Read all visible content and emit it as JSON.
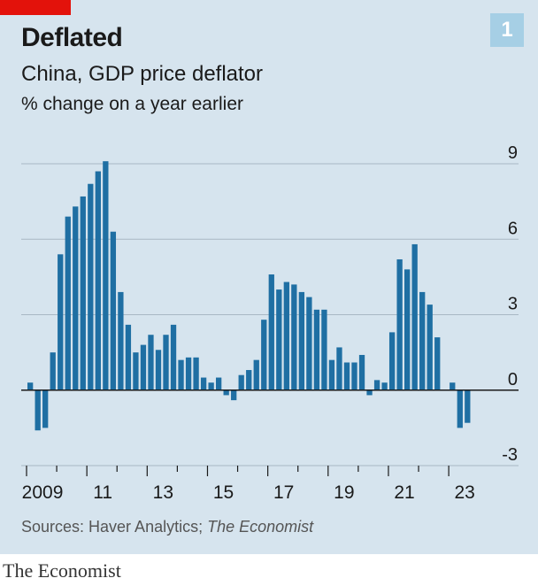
{
  "colors": {
    "accent": "#e3120b",
    "bar": "#1f6fa3",
    "badge_bg": "#a6cfe5",
    "panel_bg": "#d6e4ee",
    "grid": "#a8b8c4"
  },
  "badge": "1",
  "title": "Deflated",
  "subtitle": "China, GDP price deflator",
  "unit_label": "% change on a year earlier",
  "source_prefix": "Sources: Haver Analytics; ",
  "source_italic": "The Economist",
  "brand": "The Economist",
  "chart_data": {
    "type": "bar",
    "title": "China, GDP price deflator",
    "ylabel": "% change on a year earlier",
    "ylim": [
      -3,
      9
    ],
    "yticks": [
      "9",
      "6",
      "3",
      "0",
      "-3"
    ],
    "xticks": [
      "2009",
      "11",
      "13",
      "15",
      "17",
      "19",
      "21",
      "23"
    ],
    "grid": true,
    "categories": [
      "2009Q1",
      "2009Q2",
      "2009Q3",
      "2009Q4",
      "2010Q1",
      "2010Q2",
      "2010Q3",
      "2010Q4",
      "2011Q1",
      "2011Q2",
      "2011Q3",
      "2011Q4",
      "2012Q1",
      "2012Q2",
      "2012Q3",
      "2012Q4",
      "2013Q1",
      "2013Q2",
      "2013Q3",
      "2013Q4",
      "2014Q1",
      "2014Q2",
      "2014Q3",
      "2014Q4",
      "2015Q1",
      "2015Q2",
      "2015Q3",
      "2015Q4",
      "2016Q1",
      "2016Q2",
      "2016Q3",
      "2016Q4",
      "2017Q1",
      "2017Q2",
      "2017Q3",
      "2017Q4",
      "2018Q1",
      "2018Q2",
      "2018Q3",
      "2018Q4",
      "2019Q1",
      "2019Q2",
      "2019Q3",
      "2019Q4",
      "2020Q1",
      "2020Q2",
      "2020Q3",
      "2020Q4",
      "2021Q1",
      "2021Q2",
      "2021Q3",
      "2021Q4",
      "2022Q1",
      "2022Q2",
      "2022Q3",
      "2022Q4",
      "2023Q1",
      "2023Q2",
      "2023Q3",
      "2023Q4"
    ],
    "values": [
      0.3,
      -1.6,
      -1.5,
      1.5,
      5.4,
      6.9,
      7.3,
      7.7,
      8.2,
      8.7,
      9.1,
      6.3,
      3.9,
      2.6,
      1.5,
      1.8,
      2.2,
      1.6,
      2.2,
      2.6,
      1.2,
      1.3,
      1.3,
      0.5,
      0.3,
      0.5,
      -0.2,
      -0.4,
      0.6,
      0.8,
      1.2,
      2.8,
      4.6,
      4.0,
      4.3,
      4.2,
      3.9,
      3.7,
      3.2,
      3.2,
      1.2,
      1.7,
      1.1,
      1.1,
      1.4,
      -0.2,
      0.4,
      0.3,
      2.3,
      5.2,
      4.8,
      5.8,
      3.9,
      3.4,
      2.1,
      0,
      0.3,
      -1.5,
      -1.3,
      0
    ]
  }
}
